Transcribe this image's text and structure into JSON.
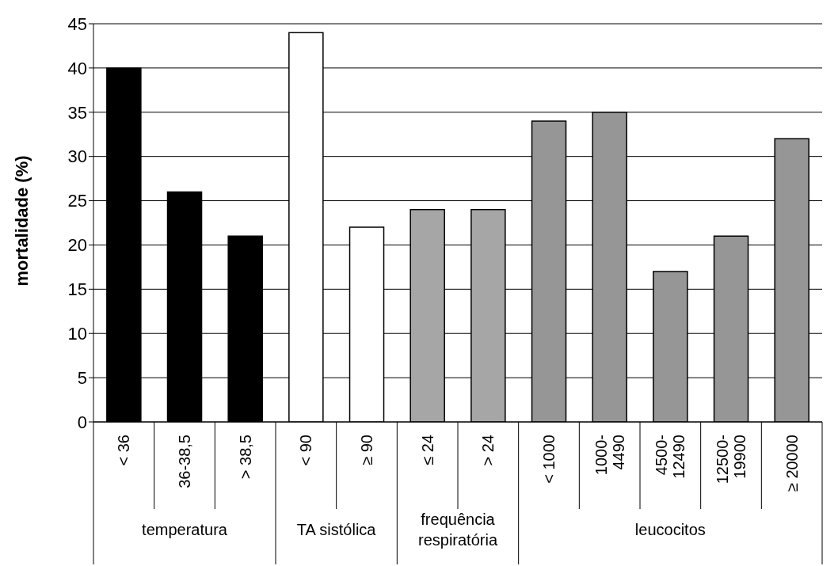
{
  "chart_data": {
    "type": "bar",
    "ylabel": "mortalidade (%)",
    "categories": [
      "< 36",
      "36-38,5",
      "> 38,5",
      "< 90",
      "≥ 90",
      "≤ 24",
      "> 24",
      "< 1000",
      "1000-4490",
      "4500-12490",
      "12500-19900",
      "≥ 20000"
    ],
    "values": [
      40,
      26,
      21,
      44,
      22,
      24,
      24,
      34,
      35,
      17,
      21,
      32
    ],
    "colors": [
      "#000000",
      "#000000",
      "#000000",
      "#ffffff",
      "#ffffff",
      "#a6a6a6",
      "#a6a6a6",
      "#969696",
      "#969696",
      "#969696",
      "#969696",
      "#969696"
    ],
    "ylim": [
      0,
      45
    ],
    "yticks": [
      0,
      5,
      10,
      15,
      20,
      25,
      30,
      35,
      40,
      45
    ],
    "grid": "y",
    "annotations": [
      "temperatura",
      "TA sistólica",
      "frequência respiratória",
      "leucocitos"
    ]
  }
}
